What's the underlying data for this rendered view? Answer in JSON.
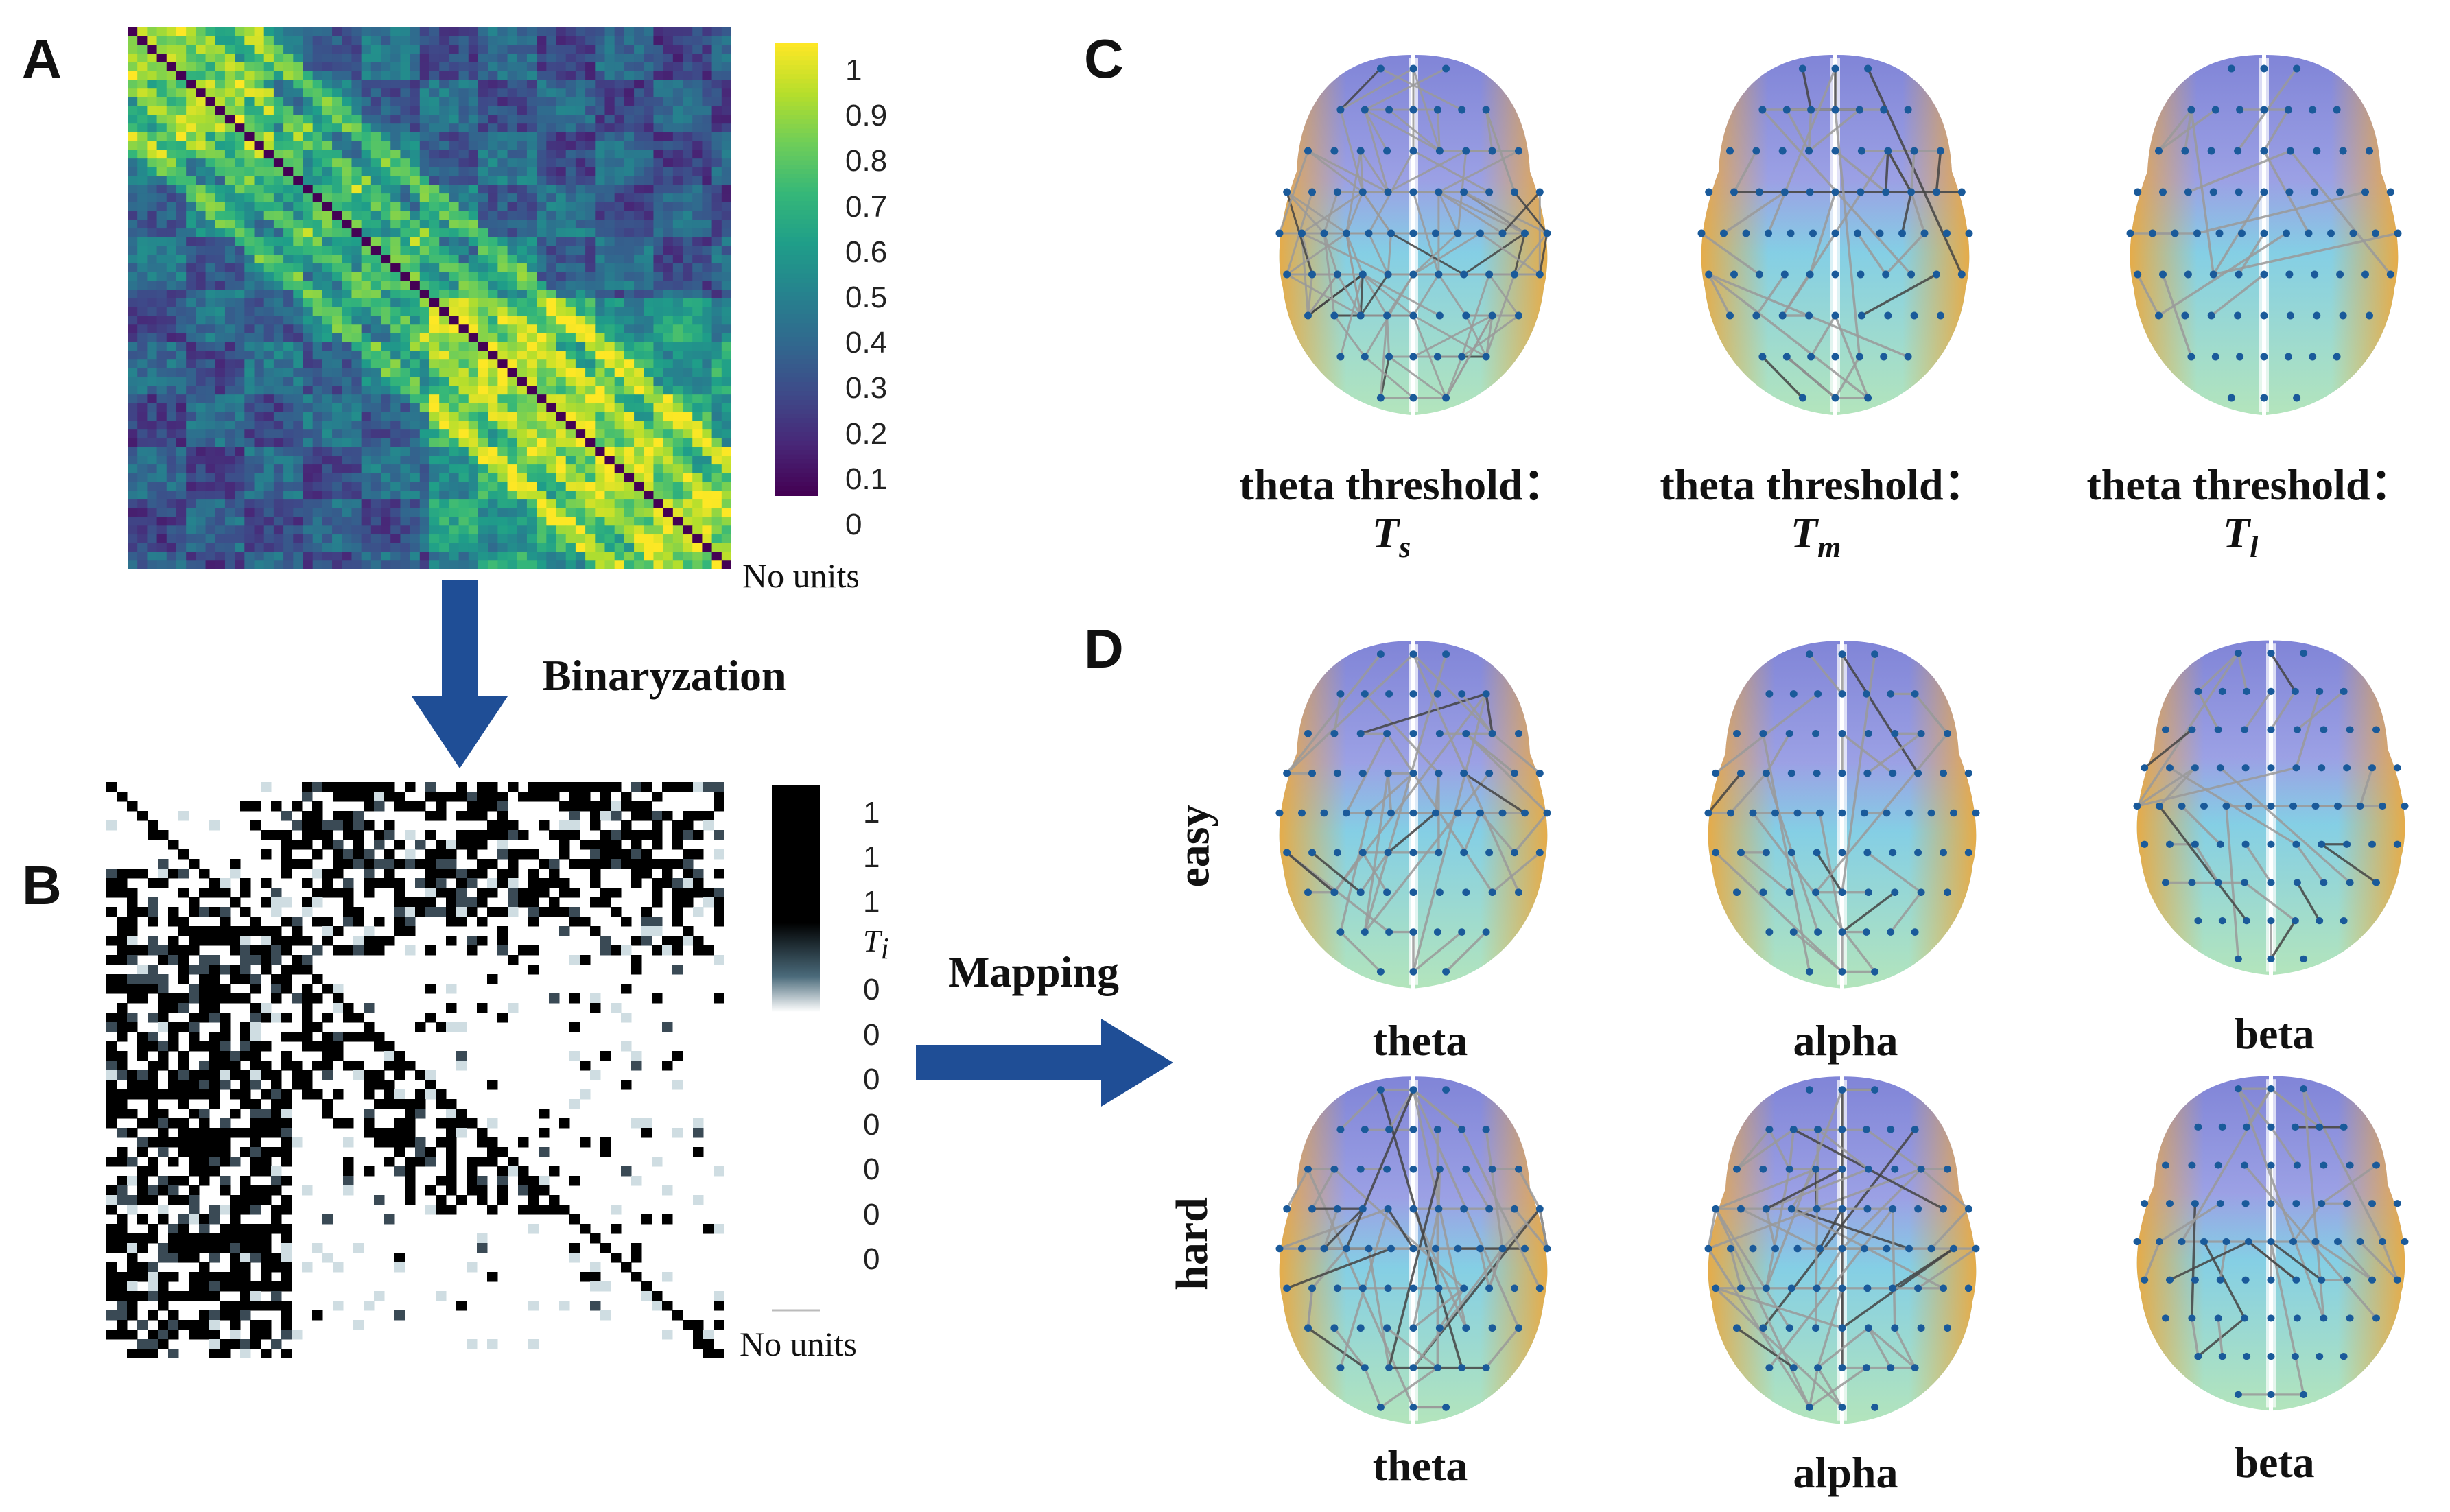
{
  "panels": {
    "a": "A",
    "b": "B",
    "c": "C",
    "d": "D"
  },
  "labels": {
    "binarization": "Binaryzation",
    "mapping": "Mapping",
    "no_units_a": "No units",
    "no_units_b": "No units",
    "ti_symbol": "T",
    "ti_sub": "i"
  },
  "colorbar_a": {
    "ticks": [
      "1",
      "0.9",
      "0.8",
      "0.7",
      "0.6",
      "0.5",
      "0.4",
      "0.3",
      "0.2",
      "0.1",
      "0"
    ],
    "colormap": "viridis"
  },
  "colorbar_b": {
    "ticks_top": [
      "1",
      "1",
      "1"
    ],
    "ticks_bottom": [
      "0",
      "0",
      "0",
      "0",
      "0",
      "0",
      "0"
    ]
  },
  "panel_c": {
    "captions": [
      {
        "line1": "theta threshold：",
        "sym": "T",
        "sub": "s"
      },
      {
        "line1": "theta threshold：",
        "sym": "T",
        "sub": "m"
      },
      {
        "line1": "theta threshold：",
        "sym": "T",
        "sub": "l"
      }
    ]
  },
  "panel_d": {
    "rows": [
      "easy",
      "hard"
    ],
    "cols_row1": [
      "theta",
      "alpha",
      "beta"
    ],
    "cols_row2": [
      "theta",
      "alpha",
      "beta"
    ]
  },
  "colors": {
    "arrow": "#1f4e96",
    "brain_front": "#6a6fd0",
    "brain_mid": "#6fc6e0",
    "brain_side": "#f0a838",
    "brain_back": "#a6e0b0",
    "node": "#1a5a9a",
    "edge": "#9a9a9a"
  }
}
